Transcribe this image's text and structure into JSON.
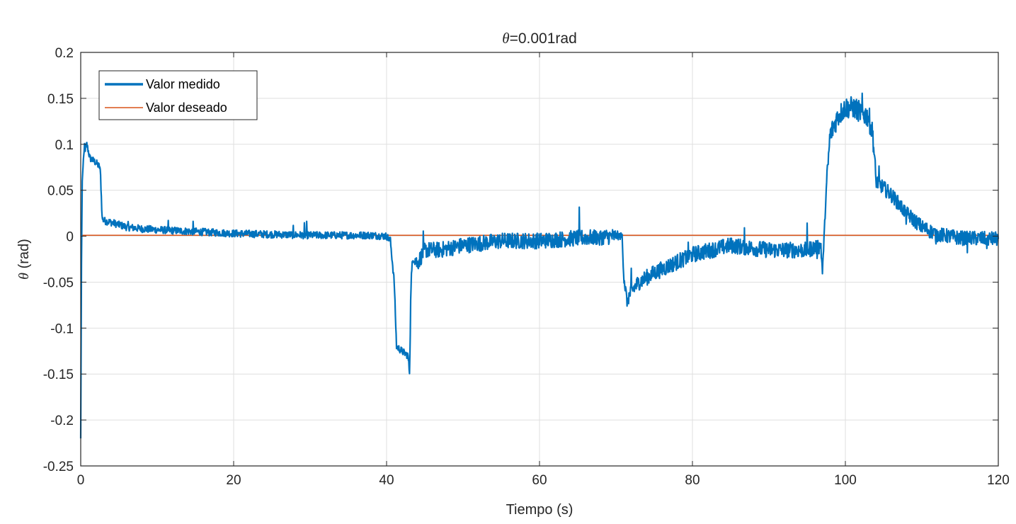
{
  "chart_data": {
    "type": "line",
    "title": "=0.001rad",
    "title_symbol": "θ",
    "xlabel": "Tiempo (s)",
    "ylabel": " (rad)",
    "ylabel_symbol": "θ",
    "xlim": [
      0,
      120
    ],
    "ylim": [
      -0.25,
      0.2
    ],
    "xticks": [
      0,
      20,
      40,
      60,
      80,
      100,
      120
    ],
    "xtick_labels": [
      "0",
      "20",
      "40",
      "60",
      "80",
      "100",
      "120"
    ],
    "yticks": [
      0.2,
      0.15,
      0.1,
      0.05,
      0,
      -0.05,
      -0.1,
      -0.15,
      -0.2,
      -0.25
    ],
    "ytick_labels": [
      "0.2",
      "0.15",
      "0.1",
      "0.05",
      "0",
      "-0.05",
      "-0.1",
      "-0.15",
      "-0.2",
      "-0.25"
    ],
    "grid": true,
    "legend_position": "top-left",
    "series": [
      {
        "name": "Valor medido",
        "color": "#0072BD",
        "noise_amplitude": 0.004,
        "points": [
          [
            0,
            -0.22
          ],
          [
            0.1,
            -0.03
          ],
          [
            0.2,
            0.06
          ],
          [
            0.4,
            0.09
          ],
          [
            0.8,
            0.1
          ],
          [
            1.2,
            0.085
          ],
          [
            2,
            0.08
          ],
          [
            2.5,
            0.075
          ],
          [
            2.6,
            0.065
          ],
          [
            2.8,
            0.02
          ],
          [
            3,
            0.017
          ],
          [
            4,
            0.015
          ],
          [
            6,
            0.01
          ],
          [
            8,
            0.008
          ],
          [
            10,
            0.007
          ],
          [
            15,
            0.005
          ],
          [
            20,
            0.003
          ],
          [
            30,
            0.001
          ],
          [
            38,
            0.001
          ],
          [
            40,
            0.0
          ],
          [
            40.5,
            -0.005
          ],
          [
            41,
            -0.05
          ],
          [
            41.3,
            -0.12
          ],
          [
            42,
            -0.125
          ],
          [
            42.8,
            -0.13
          ],
          [
            43,
            -0.148
          ],
          [
            43.2,
            -0.05
          ],
          [
            43.5,
            -0.02
          ],
          [
            44,
            -0.03
          ],
          [
            45,
            -0.015
          ],
          [
            47,
            -0.015
          ],
          [
            50,
            -0.01
          ],
          [
            55,
            -0.005
          ],
          [
            60,
            -0.005
          ],
          [
            65,
            -0.002
          ],
          [
            70,
            0.0
          ],
          [
            70.8,
            0.0
          ],
          [
            71,
            -0.04
          ],
          [
            71.4,
            -0.07
          ],
          [
            72,
            -0.06
          ],
          [
            73,
            -0.05
          ],
          [
            75,
            -0.04
          ],
          [
            80,
            -0.02
          ],
          [
            85,
            -0.01
          ],
          [
            90,
            -0.015
          ],
          [
            95,
            -0.015
          ],
          [
            96.8,
            -0.01
          ],
          [
            97,
            -0.04
          ],
          [
            97.5,
            0.05
          ],
          [
            98,
            0.11
          ],
          [
            99,
            0.13
          ],
          [
            100,
            0.14
          ],
          [
            101,
            0.14
          ],
          [
            102,
            0.135
          ],
          [
            103,
            0.13
          ],
          [
            103.6,
            0.11
          ],
          [
            104,
            0.06
          ],
          [
            106,
            0.045
          ],
          [
            108,
            0.025
          ],
          [
            110,
            0.01
          ],
          [
            112,
            0.002
          ],
          [
            115,
            -0.002
          ],
          [
            120,
            -0.003
          ]
        ]
      },
      {
        "name": "Valor deseado",
        "color": "#D95319",
        "points": [
          [
            0,
            0.001
          ],
          [
            120,
            0.001
          ]
        ]
      }
    ]
  }
}
